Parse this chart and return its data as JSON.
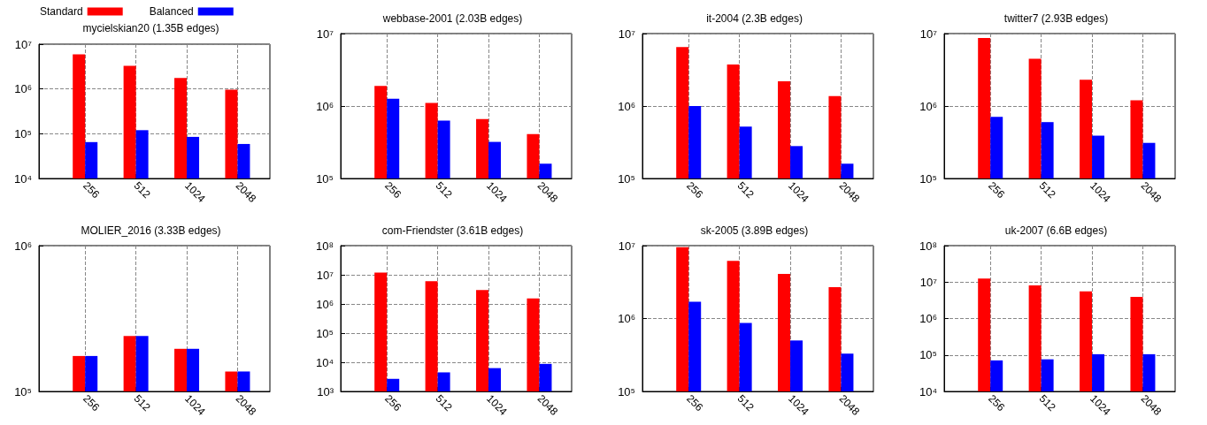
{
  "chart_data": [
    {
      "type": "bar",
      "title": "mycielskian20 (1.35B edges)",
      "categories": [
        "256",
        "512",
        "1024",
        "2048"
      ],
      "log": "y",
      "grid": true,
      "legend": "top left",
      "ylim": [
        10000,
        10000000
      ],
      "yticks": [
        {
          "value": 10000,
          "label": "10⁴"
        },
        {
          "value": 100000,
          "label": "10⁵"
        },
        {
          "value": 1000000,
          "label": "10⁶"
        },
        {
          "value": 10000000,
          "label": "10⁷"
        }
      ],
      "series": [
        {
          "name": "Standard",
          "color": "#ff0000",
          "values": [
            5900000,
            3300000,
            1750000,
            960000
          ]
        },
        {
          "name": "Balanced",
          "color": "#0000ff",
          "values": [
            65000,
            120000,
            85000,
            59000
          ]
        }
      ]
    },
    {
      "type": "bar",
      "title": "webbase-2001 (2.03B edges)",
      "categories": [
        "256",
        "512",
        "1024",
        "2048"
      ],
      "log": "y",
      "grid": true,
      "ylim": [
        100000,
        10000000
      ],
      "yticks": [
        {
          "value": 100000,
          "label": "10⁵"
        },
        {
          "value": 1000000,
          "label": "10⁶"
        },
        {
          "value": 10000000,
          "label": "10⁷"
        }
      ],
      "series": [
        {
          "color": "#ff0000",
          "values": [
            1900000,
            1100000,
            660000,
            410000
          ]
        },
        {
          "color": "#0000ff",
          "values": [
            1260000,
            630000,
            320000,
            160000
          ]
        }
      ]
    },
    {
      "type": "bar",
      "title": "it-2004 (2.3B edges)",
      "categories": [
        "256",
        "512",
        "1024",
        "2048"
      ],
      "log": "y",
      "grid": true,
      "ylim": [
        100000,
        10000000
      ],
      "yticks": [
        {
          "value": 100000,
          "label": "10⁵"
        },
        {
          "value": 1000000,
          "label": "10⁶"
        },
        {
          "value": 10000000,
          "label": "10⁷"
        }
      ],
      "series": [
        {
          "color": "#ff0000",
          "values": [
            6500000,
            3750000,
            2200000,
            1370000
          ]
        },
        {
          "color": "#0000ff",
          "values": [
            1000000,
            520000,
            280000,
            160000
          ]
        }
      ]
    },
    {
      "type": "bar",
      "title": "twitter7 (2.93B edges)",
      "categories": [
        "256",
        "512",
        "1024",
        "2048"
      ],
      "log": "y",
      "grid": true,
      "ylim": [
        100000,
        10000000
      ],
      "yticks": [
        {
          "value": 100000,
          "label": "10⁵"
        },
        {
          "value": 1000000,
          "label": "10⁶"
        },
        {
          "value": 10000000,
          "label": "10⁷"
        }
      ],
      "series": [
        {
          "color": "#ff0000",
          "values": [
            8700000,
            4500000,
            2300000,
            1200000
          ]
        },
        {
          "color": "#0000ff",
          "values": [
            710000,
            600000,
            390000,
            310000
          ]
        }
      ]
    },
    {
      "type": "bar",
      "title": "MOLIER_2016 (3.33B edges)",
      "categories": [
        "256",
        "512",
        "1024",
        "2048"
      ],
      "log": "y",
      "grid": true,
      "ylim": [
        100000,
        1000000
      ],
      "yticks": [
        {
          "value": 100000,
          "label": "10⁵"
        },
        {
          "value": 1000000,
          "label": "10⁶"
        }
      ],
      "series": [
        {
          "color": "#ff0000",
          "values": [
            175000,
            240000,
            196000,
            137000
          ]
        },
        {
          "color": "#0000ff",
          "values": [
            175000,
            240000,
            196000,
            137000
          ]
        }
      ]
    },
    {
      "type": "bar",
      "title": "com-Friendster (3.61B edges)",
      "categories": [
        "256",
        "512",
        "1024",
        "2048"
      ],
      "log": "y",
      "grid": true,
      "ylim": [
        1000,
        100000000
      ],
      "yticks": [
        {
          "value": 1000,
          "label": "10³"
        },
        {
          "value": 10000,
          "label": "10⁴"
        },
        {
          "value": 100000,
          "label": "10⁵"
        },
        {
          "value": 1000000,
          "label": "10⁶"
        },
        {
          "value": 10000000,
          "label": "10⁷"
        },
        {
          "value": 100000000,
          "label": "10⁸"
        }
      ],
      "series": [
        {
          "color": "#ff0000",
          "values": [
            12000000,
            6000000,
            3000000,
            1550000
          ]
        },
        {
          "color": "#0000ff",
          "values": [
            2700,
            4500,
            6300,
            8800
          ]
        }
      ]
    },
    {
      "type": "bar",
      "title": "sk-2005 (3.89B edges)",
      "categories": [
        "256",
        "512",
        "1024",
        "2048"
      ],
      "log": "y",
      "grid": true,
      "ylim": [
        100000,
        10000000
      ],
      "yticks": [
        {
          "value": 100000,
          "label": "10⁵"
        },
        {
          "value": 1000000,
          "label": "10⁶"
        },
        {
          "value": 10000000,
          "label": "10⁷"
        }
      ],
      "series": [
        {
          "color": "#ff0000",
          "values": [
            9500000,
            6200000,
            4100000,
            2700000
          ]
        },
        {
          "color": "#0000ff",
          "values": [
            1700000,
            870000,
            500000,
            330000
          ]
        }
      ]
    },
    {
      "type": "bar",
      "title": "uk-2007 (6.6B edges)",
      "categories": [
        "256",
        "512",
        "1024",
        "2048"
      ],
      "log": "y",
      "grid": true,
      "ylim": [
        10000,
        100000000
      ],
      "yticks": [
        {
          "value": 10000,
          "label": "10⁴"
        },
        {
          "value": 100000,
          "label": "10⁵"
        },
        {
          "value": 1000000,
          "label": "10⁶"
        },
        {
          "value": 10000000,
          "label": "10⁷"
        },
        {
          "value": 100000000,
          "label": "10⁸"
        }
      ],
      "series": [
        {
          "color": "#ff0000",
          "values": [
            12500000,
            8100000,
            5600000,
            3900000
          ]
        },
        {
          "color": "#0000ff",
          "values": [
            71000,
            76000,
            105000,
            105000
          ]
        }
      ]
    }
  ]
}
